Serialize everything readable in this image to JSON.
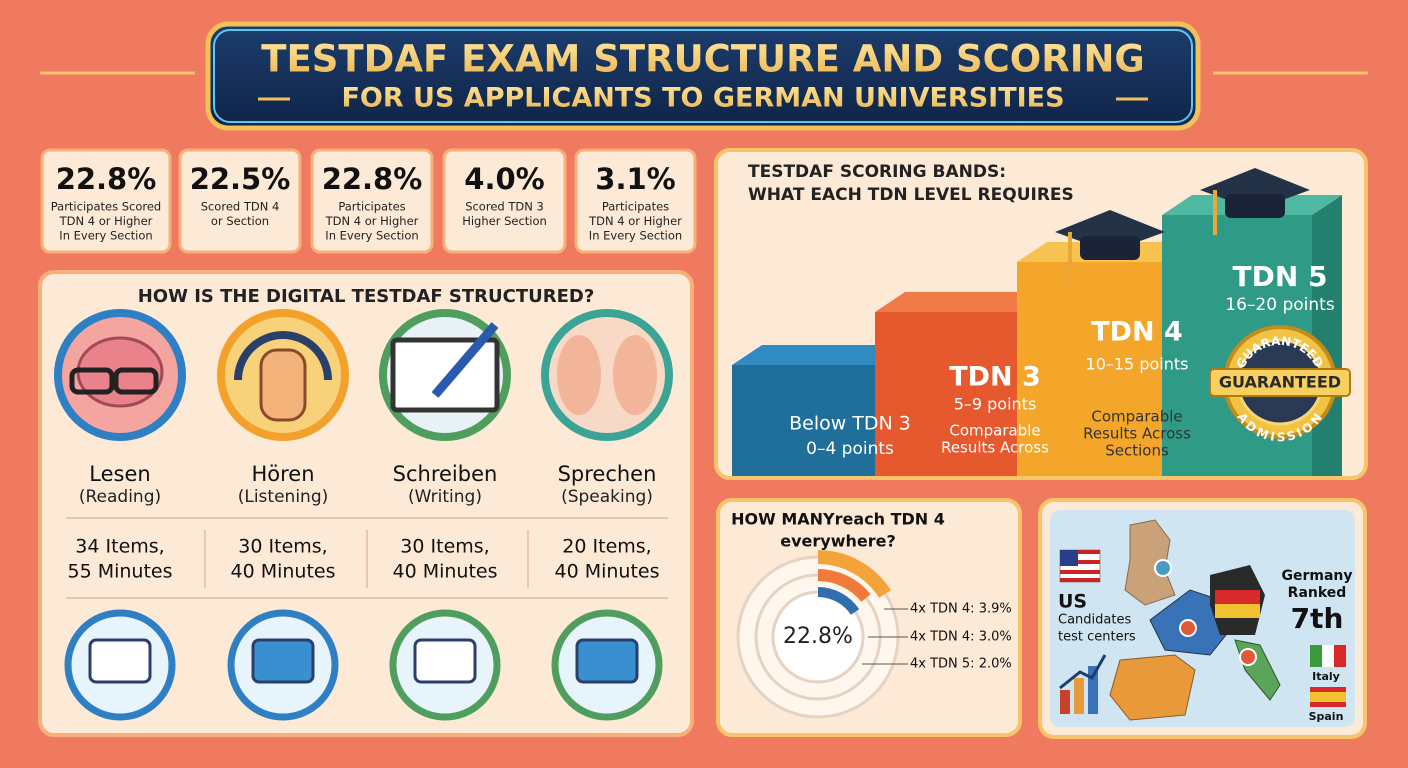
{
  "header": {
    "title": "TESTDAF EXAM STRUCTURE AND SCORING",
    "subtitle": "FOR US APPLICANTS TO GERMAN UNIVERSITIES"
  },
  "stats": [
    {
      "value": "22.8%",
      "lines": [
        "Participates Scored",
        "TDN 4 or Higher",
        "In Every Section"
      ]
    },
    {
      "value": "22.5%",
      "lines": [
        "Scored TDN 4",
        "or Section"
      ]
    },
    {
      "value": "22.8%",
      "lines": [
        "Participates",
        "TDN 4 or Higher",
        "In Every Section"
      ]
    },
    {
      "value": "4.0%",
      "lines": [
        "Scored TDN 3",
        "Higher Section"
      ]
    },
    {
      "value": "3.1%",
      "lines": [
        "Participates",
        "TDN 4 or Higher",
        "In Every Section"
      ]
    }
  ],
  "structure": {
    "title": "HOW IS THE DIGITAL TESTDAF STRUCTURED?",
    "sections": [
      {
        "name": "Lesen",
        "translation": "(Reading)",
        "items": "34 Items,",
        "minutes": "55 Minutes"
      },
      {
        "name": "Hören",
        "translation": "(Listening)",
        "items": "30 Items,",
        "minutes": "40 Minutes"
      },
      {
        "name": "Schreiben",
        "translation": "(Writing)",
        "items": "30 Items,",
        "minutes": "40 Minutes"
      },
      {
        "name": "Sprechen",
        "translation": "(Speaking)",
        "items": "20 Items,",
        "minutes": "40 Minutes"
      }
    ]
  },
  "bands": {
    "title": "TESTDAF SCORING BANDS:",
    "subtitle": "WHAT EACH TDN LEVEL REQUIRES",
    "steps": [
      {
        "label": "Below TDN 3",
        "points": "0–4 points"
      },
      {
        "label": "TDN 3",
        "points": "5–9 points",
        "note": [
          "Comparable",
          "Results Across"
        ]
      },
      {
        "label": "TDN 4",
        "points": "10–15 points",
        "note": [
          "Comparable",
          "Results Across",
          "Sections"
        ]
      },
      {
        "label": "TDN 5",
        "points": "16–20 points",
        "badge_top": "GUARANTEED",
        "badge": "GUARANTEED",
        "badge_bottom": "ADMISSION"
      }
    ]
  },
  "reach": {
    "title": [
      "HOW MANYreach TDN 4",
      "everywhere?"
    ],
    "center": "22.8%",
    "legend": [
      "4x TDN 4: 3.9%",
      "4x TDN 4: 3.0%",
      "4x TDN 5: 2.0%"
    ]
  },
  "map": {
    "us_label": "US",
    "us_caption": [
      "Candidates",
      "test centers"
    ],
    "rank_label": [
      "Germany",
      "Ranked"
    ],
    "rank": "7th",
    "countries": [
      "Italy",
      "Spain"
    ]
  }
}
